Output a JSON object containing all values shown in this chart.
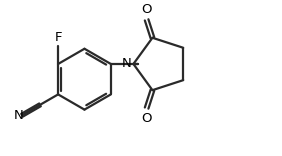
{
  "background_color": "#ffffff",
  "line_color": "#2a2a2a",
  "atom_label_color": "#000000",
  "line_width": 1.6,
  "font_size": 9.5,
  "fig_width": 2.82,
  "fig_height": 1.56,
  "dpi": 100,
  "xlim": [
    0,
    9.5
  ],
  "ylim": [
    0,
    5.27
  ]
}
